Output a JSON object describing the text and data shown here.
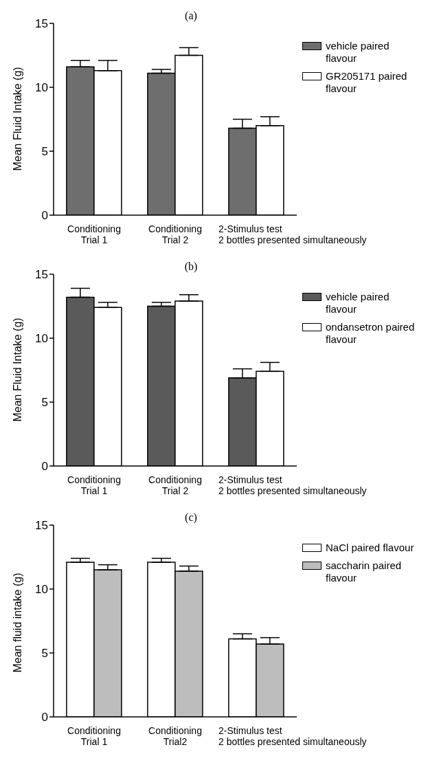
{
  "chart_data": [
    {
      "type": "bar",
      "title": "(a)",
      "ylabel": "Mean Fluid Intake (g)",
      "categories": [
        "Conditioning\nTrial 1",
        "Conditioning\nTrial 2",
        "2-Stimulus test\n2 bottles presented simultaneously"
      ],
      "series": [
        {
          "name": "vehicle paired flavour",
          "color": "#6e6e6e",
          "values": [
            11.6,
            11.1,
            6.8
          ],
          "errors": [
            [
              11.6,
              12.1
            ],
            [
              11.1,
              11.4
            ],
            [
              6.8,
              7.5
            ]
          ]
        },
        {
          "name": "GR205171 paired flavour",
          "color": "#ffffff",
          "values": [
            11.3,
            12.5,
            7.0
          ],
          "errors": [
            [
              11.3,
              12.1
            ],
            [
              12.5,
              13.1
            ],
            [
              7.0,
              7.7
            ]
          ]
        }
      ],
      "ylim": [
        0,
        15
      ],
      "yticks": [
        0,
        5,
        10,
        15
      ],
      "grid": false,
      "legend": "top right"
    },
    {
      "type": "bar",
      "title": "(b)",
      "ylabel": "Mean Fluid Intake (g)",
      "categories": [
        "Conditioning\nTrial 1",
        "Conditioning\nTrial 2",
        "2-Stimulus test\n2 bottles presented simultaneously"
      ],
      "series": [
        {
          "name": "vehicle paired flavour",
          "color": "#5a5a5a",
          "values": [
            13.2,
            12.5,
            6.9
          ],
          "errors": [
            [
              13.2,
              13.9
            ],
            [
              12.5,
              12.8
            ],
            [
              6.9,
              7.6
            ]
          ]
        },
        {
          "name": "ondansetron paired flavour",
          "color": "#ffffff",
          "values": [
            12.4,
            12.9,
            7.4
          ],
          "errors": [
            [
              12.4,
              12.8
            ],
            [
              12.9,
              13.4
            ],
            [
              7.4,
              8.1
            ]
          ]
        }
      ],
      "ylim": [
        0,
        15
      ],
      "yticks": [
        0,
        5,
        10,
        15
      ],
      "grid": false,
      "legend": "top right"
    },
    {
      "type": "bar",
      "title": "(c)",
      "ylabel": "Mean fluid intake (g)",
      "categories": [
        "Conditioning\nTrial 1",
        "Conditioning\nTrial2",
        "2-Stimulus test\n2 bottles presented simultaneously"
      ],
      "series": [
        {
          "name": "NaCl paired flavour",
          "color": "#ffffff",
          "values": [
            12.1,
            12.1,
            6.1
          ],
          "errors": [
            [
              12.1,
              12.4
            ],
            [
              12.1,
              12.4
            ],
            [
              6.1,
              6.5
            ]
          ]
        },
        {
          "name": "saccharin paired flavour",
          "color": "#bdbdbd",
          "values": [
            11.5,
            11.4,
            5.7
          ],
          "errors": [
            [
              11.5,
              11.9
            ],
            [
              11.4,
              11.8
            ],
            [
              5.7,
              6.2
            ]
          ]
        }
      ],
      "ylim": [
        0,
        15
      ],
      "yticks": [
        0,
        5,
        10,
        15
      ],
      "grid": false,
      "legend": "top right"
    }
  ]
}
